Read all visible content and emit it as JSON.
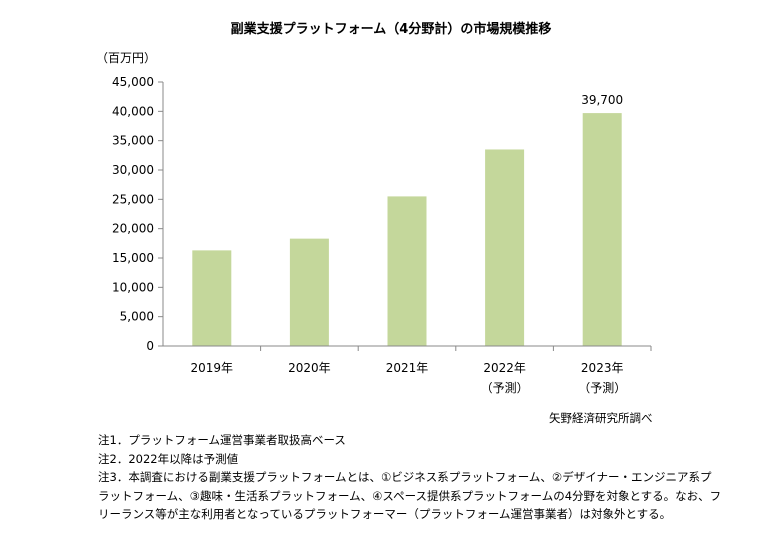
{
  "chart_data": {
    "type": "bar",
    "title": "副業支援プラットフォーム（4分野計）の市場規模推移",
    "unit_label": "（百万円）",
    "categories": [
      "2019年",
      "2020年",
      "2021年",
      "2022年",
      "2023年"
    ],
    "category_sublabels": [
      "",
      "",
      "",
      "（予測）",
      "（予測）"
    ],
    "values": [
      16300,
      18300,
      25500,
      33500,
      39700
    ],
    "data_labels": [
      "",
      "",
      "",
      "",
      "39,700"
    ],
    "ylim": [
      0,
      45000
    ],
    "yticks": [
      0,
      5000,
      10000,
      15000,
      20000,
      25000,
      30000,
      35000,
      40000,
      45000
    ],
    "ytick_labels": [
      "0",
      "5,000",
      "10,000",
      "15,000",
      "20,000",
      "25,000",
      "30,000",
      "35,000",
      "40,000",
      "45,000"
    ],
    "bar_color": "#c4d79b",
    "grid": false,
    "legend": "none"
  },
  "source": "矢野経済研究所調べ",
  "notes": [
    "注1．プラットフォーム運営事業者取扱高ベース",
    "注2．2022年以降は予測値",
    "注3．本調査における副業支援プラットフォームとは、①ビジネス系プラットフォーム、②デザイナー・エンジニア系プ",
    "ラットフォーム、③趣味・生活系プラットフォーム、④スペース提供系プラットフォームの4分野を対象とする。なお、フ",
    "リーランス等が主な利用者となっているプラットフォーマー（プラットフォーム運営事業者）は対象外とする。"
  ]
}
